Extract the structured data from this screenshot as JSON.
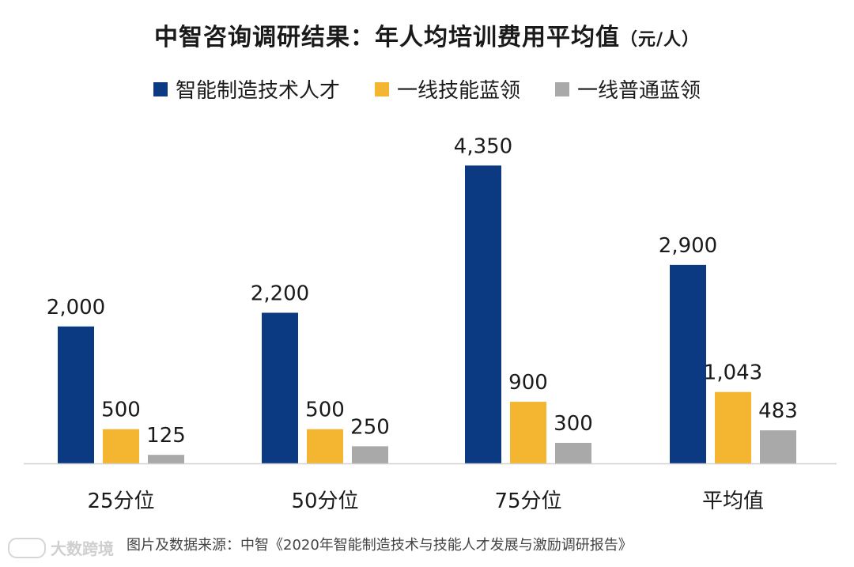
{
  "chart_data": {
    "type": "bar",
    "title": "中智咨询调研结果：年人均培训费用平均值",
    "title_unit": "（元/人）",
    "categories": [
      "25分位",
      "50分位",
      "75分位",
      "平均值"
    ],
    "series": [
      {
        "name": "智能制造技术人才",
        "color": "#0b3a82",
        "values": [
          2000,
          2200,
          4350,
          2900
        ],
        "labels": [
          "2,000",
          "2,200",
          "4,350",
          "2,900"
        ]
      },
      {
        "name": "一线技能蓝领",
        "color": "#f4b630",
        "values": [
          500,
          500,
          900,
          1043
        ],
        "labels": [
          "500",
          "500",
          "900",
          "1,043"
        ]
      },
      {
        "name": "一线普通蓝领",
        "color": "#a9a9a9",
        "values": [
          125,
          250,
          300,
          483
        ],
        "labels": [
          "125",
          "250",
          "300",
          "483"
        ]
      }
    ],
    "ylim": [
      0,
      4400
    ],
    "grid": false,
    "legend_position": "top-center"
  },
  "source": "图片及数据来源：中智《2020年智能制造技术与技能人才发展与激励调研报告》",
  "watermark": "大数跨境"
}
